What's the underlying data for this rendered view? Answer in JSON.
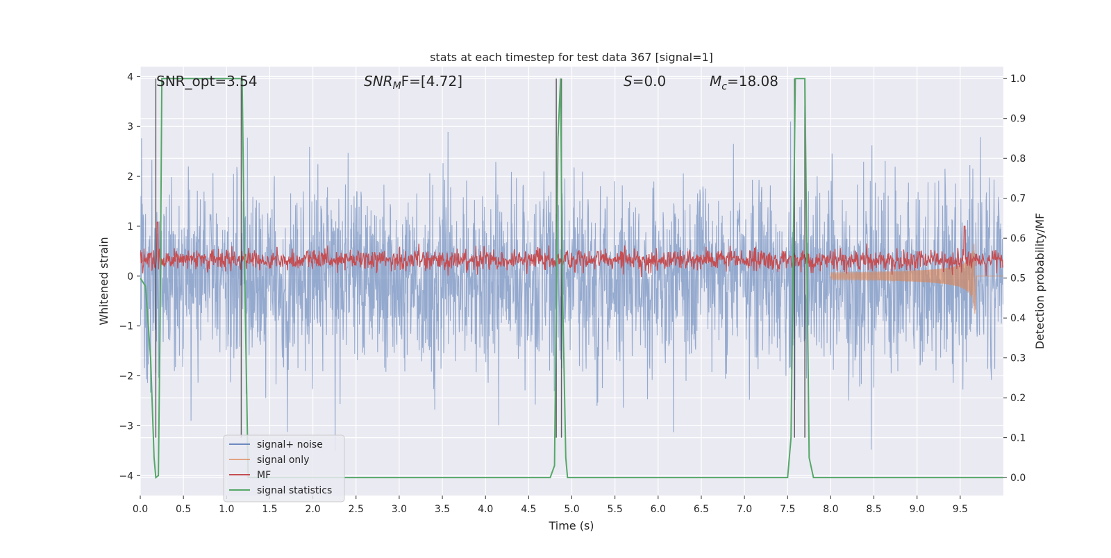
{
  "chart_data": {
    "type": "line",
    "title": "stats at each timestep for test data 367 [signal=1]",
    "xlabel": "Time (s)",
    "ylabel": "Whitened strain",
    "ylabel_right": "Detection probability/MF",
    "xlim": [
      0,
      10
    ],
    "ylim": [
      -4.4,
      4.2
    ],
    "ylim_right": [
      -0.045,
      1.03
    ],
    "x_ticks": [
      "0.0",
      "0.5",
      "1.0",
      "1.5",
      "2.0",
      "2.5",
      "3.0",
      "3.5",
      "4.0",
      "4.5",
      "5.0",
      "5.5",
      "6.0",
      "6.5",
      "7.0",
      "7.5",
      "8.0",
      "8.5",
      "9.0",
      "9.5"
    ],
    "y_ticks": [
      "−4",
      "−3",
      "−2",
      "−1",
      "0",
      "1",
      "2",
      "3",
      "4"
    ],
    "y_ticks_right": [
      "0.0",
      "0.1",
      "0.2",
      "0.3",
      "0.4",
      "0.5",
      "0.6",
      "0.7",
      "0.8",
      "0.9",
      "1.0"
    ],
    "grid": true,
    "legend_position": "lower-left",
    "annotations": {
      "snr_opt": "SNR_opt=3.54",
      "snr_mf_sym": "SNR",
      "snr_mf_sub": "M",
      "snr_mf_rest": "F=[4.72]",
      "s_sym": "S",
      "s_rest": "=0.0",
      "mc_sym": "M",
      "mc_sub": "c",
      "mc_rest": "=18.08"
    },
    "series": [
      {
        "name": "signal+ noise",
        "color": "#4c72b0",
        "axis": "left",
        "description_values": "whitened noise, roughly ±2 with spikes to ±3.9",
        "envelope": {
          "typical": 2.2,
          "max": 3.9
        }
      },
      {
        "name": "signal only",
        "color": "#dd8452",
        "axis": "left",
        "chirp": {
          "t_start": 8.0,
          "t_merge": 9.67,
          "peak_amplitude": 0.8
        }
      },
      {
        "name": "MF",
        "color": "#c44e52",
        "axis": "right",
        "typical_range": [
          0.5,
          0.6
        ],
        "spikes": [
          [
            0.2,
            0.64
          ],
          [
            9.55,
            0.63
          ]
        ]
      },
      {
        "name": "signal statistics",
        "color": "#55a868",
        "axis": "right",
        "x": [
          0.0,
          0.06,
          0.12,
          0.16,
          0.18,
          0.21,
          0.23,
          0.25,
          0.28,
          1.18,
          1.21,
          1.25,
          1.27,
          4.75,
          4.8,
          4.84,
          4.87,
          4.89,
          4.93,
          4.95,
          7.5,
          7.54,
          7.59,
          7.63,
          7.7,
          7.75,
          7.8,
          10.0
        ],
        "y": [
          0.5,
          0.48,
          0.3,
          0.05,
          0.0,
          0.005,
          0.4,
          1.0,
          1.0,
          1.0,
          0.5,
          0.0,
          0.0,
          0.0,
          0.03,
          0.85,
          1.0,
          0.5,
          0.05,
          0.0,
          0.0,
          0.1,
          1.0,
          1.0,
          1.0,
          0.05,
          0.0,
          0.0
        ]
      }
    ],
    "vertical_lines": [
      0.18,
      1.17,
      4.82,
      4.88,
      7.58,
      7.7
    ]
  }
}
